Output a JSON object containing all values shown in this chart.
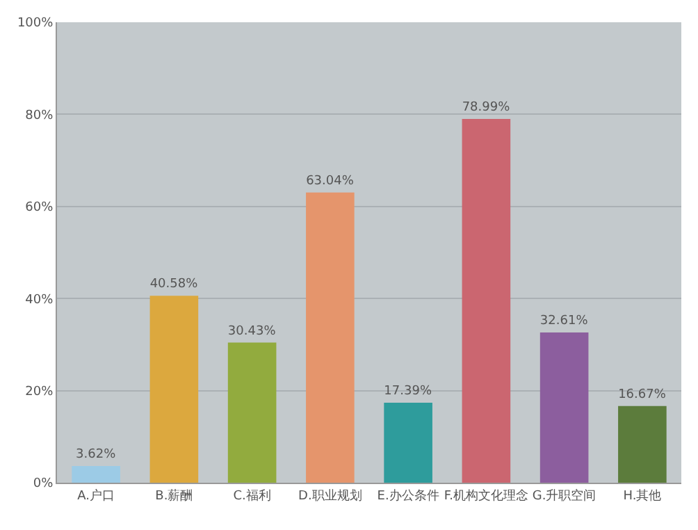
{
  "chart_data": {
    "type": "bar",
    "categories": [
      "A.户口",
      "B.薪酬",
      "C.福利",
      "D.职业规划",
      "E.办公条件",
      "F.机构文化理念",
      "G.升职空间",
      "H.其他"
    ],
    "values": [
      3.62,
      40.58,
      30.43,
      63.04,
      17.39,
      78.99,
      32.61,
      16.67
    ],
    "value_labels": [
      "3.62%",
      "40.58%",
      "30.43%",
      "63.04%",
      "17.39%",
      "78.99%",
      "32.61%",
      "16.67%"
    ],
    "colors": [
      "#9ccbe6",
      "#dca83e",
      "#92ab3e",
      "#e5956c",
      "#2e9c9c",
      "#cb6670",
      "#8c5e9e",
      "#5c7c3c"
    ],
    "ylim": [
      0,
      100
    ],
    "yticks": [
      {
        "value": 0,
        "label": "0%"
      },
      {
        "value": 20,
        "label": "20%"
      },
      {
        "value": 40,
        "label": "40%"
      },
      {
        "value": 60,
        "label": "60%"
      },
      {
        "value": 80,
        "label": "80%"
      },
      {
        "value": 100,
        "label": "100%"
      }
    ],
    "grid": "y"
  }
}
